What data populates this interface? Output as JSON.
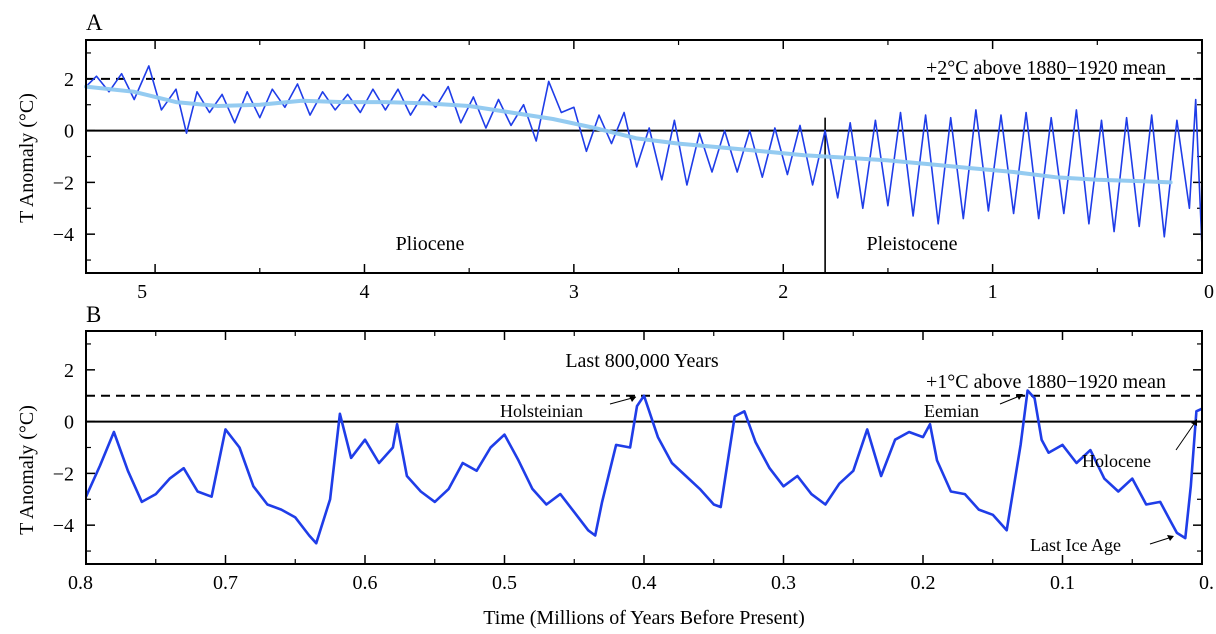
{
  "chart_data": [
    {
      "panel": "A",
      "type": "line",
      "ylabel": "T Anomaly (°C)",
      "xlim": [
        5.33,
        0
      ],
      "ylim": [
        -5.5,
        3.5
      ],
      "xticks": [
        5,
        4,
        3,
        2,
        1,
        0
      ],
      "xtick_labels": [
        "5",
        "4",
        "3",
        "2",
        "1",
        "0"
      ],
      "yticks": [
        -4,
        -2,
        0,
        2
      ],
      "ytick_labels": [
        "−4",
        "−2",
        "0",
        "2"
      ],
      "colors": {
        "raw": "#1f3de8",
        "smooth": "#8ec8f0"
      },
      "series": [
        {
          "x": [
            5.33,
            5.28,
            5.22,
            5.16,
            5.1,
            5.03,
            4.97,
            4.9,
            4.85,
            4.8,
            4.74,
            4.68,
            4.62,
            4.56,
            4.5,
            4.44,
            4.38,
            4.32,
            4.26,
            4.2,
            4.14,
            4.08,
            4.02,
            3.96,
            3.9,
            3.84,
            3.78,
            3.72,
            3.66,
            3.6,
            3.54,
            3.48,
            3.42,
            3.36,
            3.3,
            3.24,
            3.18,
            3.12,
            3.06,
            3.0,
            2.94,
            2.88,
            2.82,
            2.76,
            2.7,
            2.64,
            2.58,
            2.52,
            2.46,
            2.4,
            2.34,
            2.28,
            2.22,
            2.16,
            2.1,
            2.04,
            1.98,
            1.92,
            1.86,
            1.8,
            1.74,
            1.68,
            1.62,
            1.56,
            1.5,
            1.44,
            1.38,
            1.32,
            1.26,
            1.2,
            1.14,
            1.08,
            1.02,
            0.96,
            0.9,
            0.84,
            0.78,
            0.72,
            0.66,
            0.6,
            0.54,
            0.48,
            0.42,
            0.36,
            0.3,
            0.24,
            0.18,
            0.12,
            0.06,
            0.03,
            0.0
          ],
          "y": [
            1.7,
            2.1,
            1.5,
            2.2,
            1.2,
            2.5,
            0.8,
            1.6,
            -0.1,
            1.5,
            0.7,
            1.4,
            0.3,
            1.5,
            0.5,
            1.6,
            0.9,
            1.8,
            0.6,
            1.5,
            0.8,
            1.4,
            0.7,
            1.6,
            0.8,
            1.6,
            0.6,
            1.4,
            0.9,
            1.7,
            0.3,
            1.3,
            0.1,
            1.2,
            0.2,
            1.0,
            -0.4,
            1.9,
            0.7,
            0.9,
            -0.8,
            0.6,
            -0.5,
            0.7,
            -1.4,
            0.1,
            -1.9,
            0.4,
            -2.1,
            -0.1,
            -1.6,
            0.0,
            -1.6,
            0.0,
            -1.8,
            0.1,
            -1.7,
            0.2,
            -2.1,
            0.0,
            -2.6,
            0.3,
            -3.0,
            0.4,
            -2.9,
            0.7,
            -3.3,
            0.6,
            -3.6,
            0.5,
            -3.4,
            0.8,
            -3.1,
            0.6,
            -3.2,
            0.7,
            -3.4,
            0.5,
            -3.2,
            0.8,
            -3.6,
            0.4,
            -3.9,
            0.5,
            -3.7,
            0.6,
            -4.1,
            0.4,
            -3.0,
            1.2,
            -4.5
          ]
        },
        {
          "x": [
            5.33,
            5.1,
            4.9,
            4.7,
            4.5,
            4.3,
            4.1,
            3.9,
            3.7,
            3.5,
            3.3,
            3.1,
            2.9,
            2.7,
            2.5,
            2.3,
            2.1,
            1.9,
            1.7,
            1.5,
            1.3,
            1.1,
            0.9,
            0.7,
            0.5,
            0.3,
            0.15
          ],
          "y": [
            1.7,
            1.5,
            1.1,
            0.95,
            1.0,
            1.15,
            1.1,
            1.1,
            1.05,
            0.95,
            0.7,
            0.45,
            0.1,
            -0.3,
            -0.5,
            -0.65,
            -0.8,
            -0.95,
            -1.05,
            -1.15,
            -1.3,
            -1.45,
            -1.6,
            -1.8,
            -1.9,
            -1.95,
            -2.0
          ]
        }
      ],
      "reference_line": {
        "y": 2,
        "label": "+2°C above 1880−1920 mean"
      },
      "zero_line": {
        "y": 0
      },
      "boundary": {
        "x": 1.8
      },
      "annotations": [
        "Pliocene",
        "Pleistocene"
      ]
    },
    {
      "panel": "B",
      "type": "line",
      "title": "Last 800,000 Years",
      "xlabel": "Time (Millions of Years Before Present)",
      "ylabel": "T Anomaly (°C)",
      "xlim": [
        0.8,
        0.0
      ],
      "ylim": [
        -5.5,
        3.5
      ],
      "xticks": [
        0.8,
        0.7,
        0.6,
        0.5,
        0.4,
        0.3,
        0.2,
        0.1,
        0.0
      ],
      "xtick_labels": [
        "0.8",
        "0.7",
        "0.6",
        "0.5",
        "0.4",
        "0.3",
        "0.2",
        "0.1",
        "0."
      ],
      "yticks": [
        -4,
        -2,
        0,
        2
      ],
      "ytick_labels": [
        "−4",
        "−2",
        "0",
        "2"
      ],
      "colors": {
        "line": "#1f3de8"
      },
      "series": [
        {
          "x": [
            0.8,
            0.79,
            0.78,
            0.77,
            0.76,
            0.75,
            0.74,
            0.73,
            0.72,
            0.71,
            0.7,
            0.69,
            0.68,
            0.67,
            0.66,
            0.65,
            0.64,
            0.635,
            0.625,
            0.618,
            0.61,
            0.6,
            0.59,
            0.58,
            0.577,
            0.57,
            0.56,
            0.55,
            0.54,
            0.53,
            0.52,
            0.51,
            0.5,
            0.49,
            0.48,
            0.47,
            0.46,
            0.45,
            0.44,
            0.435,
            0.43,
            0.42,
            0.41,
            0.405,
            0.4,
            0.39,
            0.38,
            0.37,
            0.36,
            0.35,
            0.345,
            0.335,
            0.328,
            0.32,
            0.31,
            0.3,
            0.29,
            0.28,
            0.27,
            0.26,
            0.25,
            0.24,
            0.23,
            0.22,
            0.21,
            0.2,
            0.195,
            0.19,
            0.18,
            0.17,
            0.16,
            0.15,
            0.14,
            0.13,
            0.125,
            0.12,
            0.115,
            0.11,
            0.1,
            0.09,
            0.08,
            0.07,
            0.06,
            0.05,
            0.04,
            0.03,
            0.022,
            0.018,
            0.012,
            0.008,
            0.004,
            0.0
          ],
          "y": [
            -2.9,
            -1.7,
            -0.4,
            -1.9,
            -3.1,
            -2.8,
            -2.2,
            -1.8,
            -2.7,
            -2.9,
            -0.3,
            -1.0,
            -2.5,
            -3.2,
            -3.4,
            -3.7,
            -4.4,
            -4.7,
            -3.0,
            0.3,
            -1.4,
            -0.7,
            -1.6,
            -1.0,
            -0.1,
            -2.1,
            -2.7,
            -3.1,
            -2.6,
            -1.6,
            -1.9,
            -1.0,
            -0.5,
            -1.5,
            -2.6,
            -3.2,
            -2.8,
            -3.5,
            -4.2,
            -4.4,
            -3.1,
            -0.9,
            -1.0,
            0.6,
            1.0,
            -0.6,
            -1.6,
            -2.1,
            -2.6,
            -3.2,
            -3.3,
            0.2,
            0.4,
            -0.8,
            -1.8,
            -2.5,
            -2.1,
            -2.8,
            -3.2,
            -2.4,
            -1.9,
            -0.3,
            -2.1,
            -0.7,
            -0.4,
            -0.6,
            -0.1,
            -1.5,
            -2.7,
            -2.8,
            -3.4,
            -3.6,
            -4.2,
            -0.9,
            1.2,
            0.9,
            -0.7,
            -1.2,
            -0.9,
            -1.6,
            -1.1,
            -2.2,
            -2.7,
            -2.2,
            -3.2,
            -3.1,
            -3.9,
            -4.3,
            -4.5,
            -2.5,
            0.4,
            0.5
          ]
        }
      ],
      "reference_line": {
        "y": 1,
        "label": "+1°C above 1880−1920 mean"
      },
      "zero_line": {
        "y": 0
      },
      "annotations": [
        "Holsteinian",
        "Eemian",
        "Holocene",
        "Last Ice Age"
      ]
    }
  ]
}
